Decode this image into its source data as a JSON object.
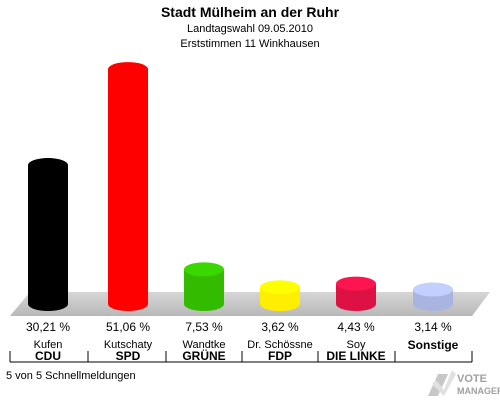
{
  "header": {
    "title": "Stadt Mülheim an der Ruhr",
    "subtitle1": "Landtagswahl 09.05.2010",
    "subtitle2": "Erststimmen 11 Winkhausen"
  },
  "chart_data": {
    "type": "bar",
    "categories": [
      "CDU",
      "SPD",
      "GRÜNE",
      "FDP",
      "DIE LINKE",
      "Sonstige"
    ],
    "candidates": [
      "Kufen",
      "Kutschaty",
      "Wandtke",
      "Dr. Schössne",
      "Soy",
      ""
    ],
    "values": [
      30.21,
      51.06,
      7.53,
      3.62,
      4.43,
      3.14
    ],
    "value_labels": [
      "30,21 %",
      "51,06 %",
      "7,53 %",
      "3,62 %",
      "4,43 %",
      "3,14 %"
    ],
    "colors": [
      "#000000",
      "#ff0000",
      "#33bb00",
      "#ffee00",
      "#dd1144",
      "#aab4e0"
    ],
    "title": "Stadt Mülheim an der Ruhr",
    "xlabel": "",
    "ylabel": "",
    "ylim": [
      0,
      55
    ],
    "grid": false,
    "legend": "none"
  },
  "footer": {
    "note": "5 von 5 Schnellmeldungen",
    "logo_text_top": "VOTE",
    "logo_text_bottom": "MANAGER"
  }
}
